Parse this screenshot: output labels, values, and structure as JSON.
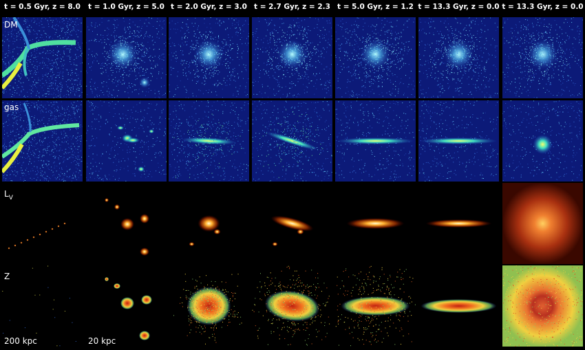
{
  "columns": [
    "t = 0.5 Gyr, z = 8.0",
    "t = 1.0 Gyr, z = 5.0",
    "t = 2.0 Gyr, z = 3.0",
    "t = 2.7 Gyr, z = 2.3",
    "t = 5.0 Gyr, z = 1.2",
    "t = 13.3 Gyr, z = 0.0",
    "t = 13.3 Gyr, z = 0.0"
  ],
  "rows": [
    {
      "label": "DM"
    },
    {
      "label": "gas"
    },
    {
      "label": "L",
      "subscript": "V"
    },
    {
      "label": "Z"
    }
  ],
  "scale_labels": [
    "200 kpc",
    "20 kpc"
  ]
}
